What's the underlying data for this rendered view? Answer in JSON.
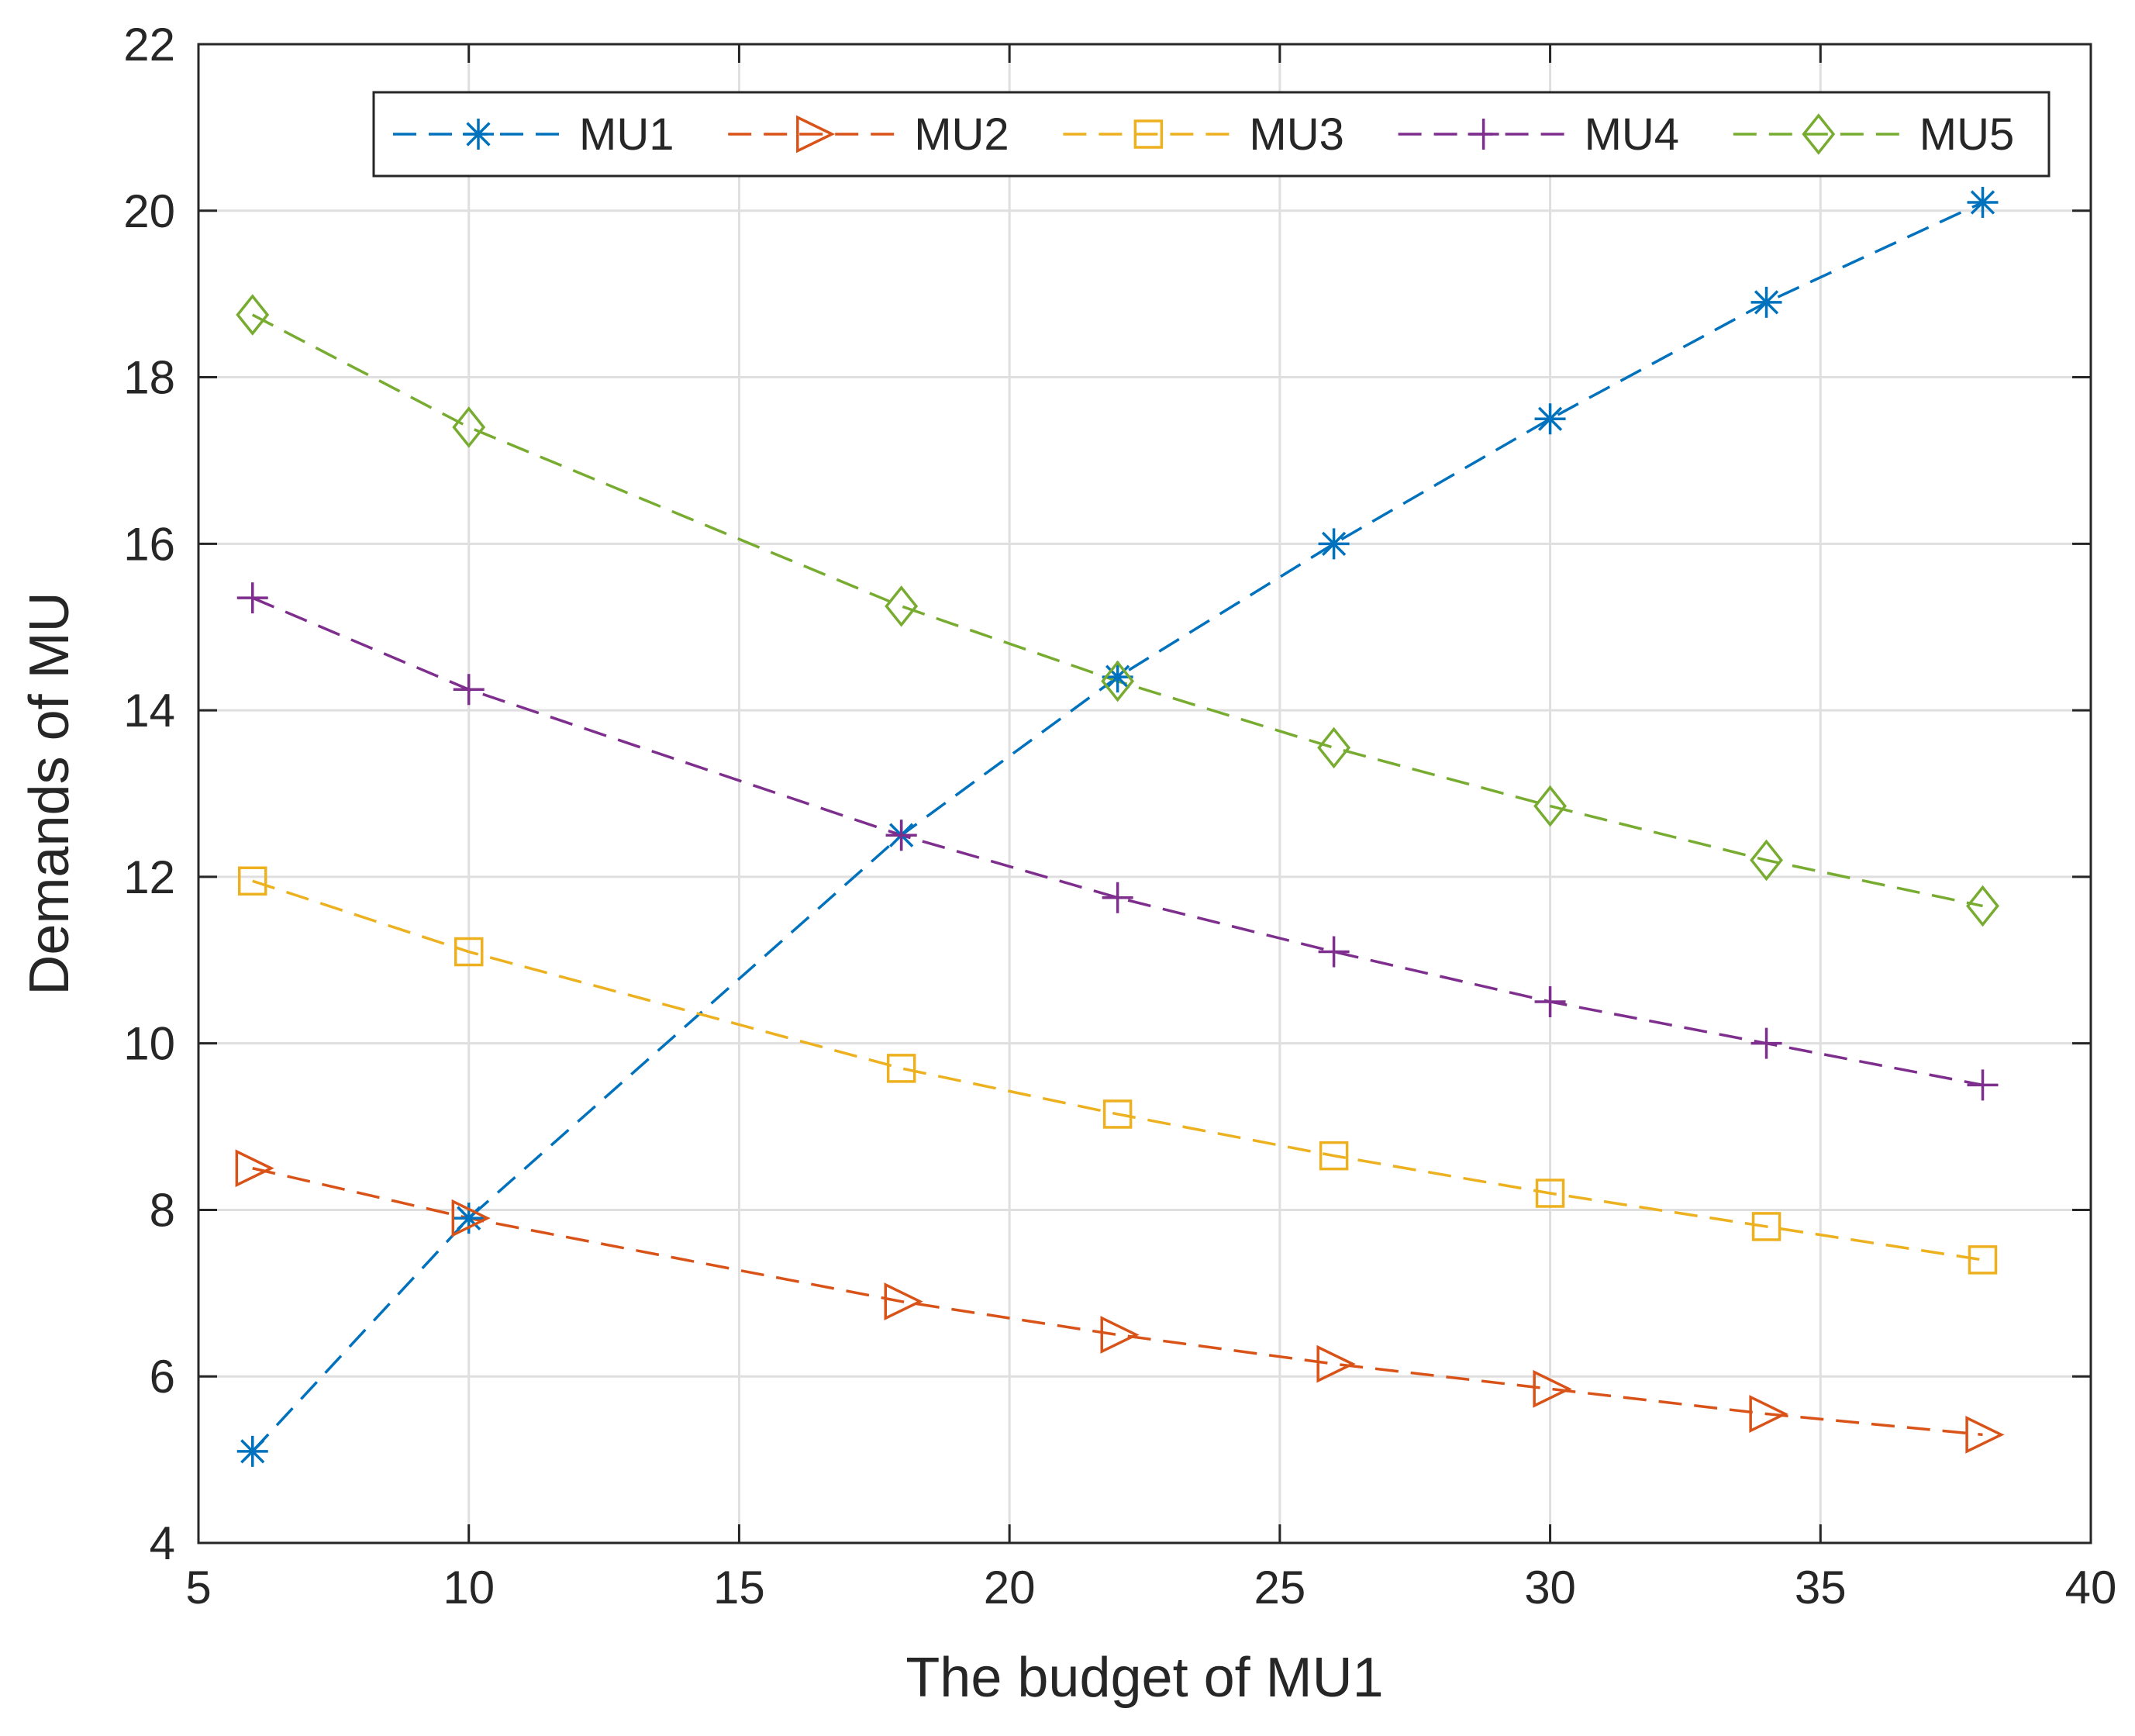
{
  "chart_data": {
    "type": "line",
    "title": "",
    "xlabel": "The budget of MU1",
    "ylabel": "Demands of MU",
    "xlim": [
      5,
      40
    ],
    "ylim": [
      4,
      22
    ],
    "xticks": [
      5,
      10,
      15,
      20,
      25,
      30,
      35,
      40
    ],
    "yticks": [
      4,
      6,
      8,
      10,
      12,
      14,
      16,
      18,
      20,
      22
    ],
    "grid": true,
    "legend_position": "top",
    "legend_orientation": "horizontal",
    "x": [
      6,
      10,
      18,
      22,
      26,
      30,
      34,
      38
    ],
    "series": [
      {
        "name": "MU1",
        "color": "#0072BD",
        "marker": "asterisk",
        "values": [
          5.1,
          7.9,
          12.5,
          14.4,
          16.0,
          17.5,
          18.9,
          20.1
        ]
      },
      {
        "name": "MU2",
        "color": "#D95319",
        "marker": "triangle-right",
        "values": [
          8.5,
          7.9,
          6.9,
          6.5,
          6.15,
          5.85,
          5.55,
          5.3
        ]
      },
      {
        "name": "MU3",
        "color": "#EDB120",
        "marker": "square",
        "values": [
          11.95,
          11.1,
          9.7,
          9.15,
          8.65,
          8.2,
          7.8,
          7.4
        ]
      },
      {
        "name": "MU4",
        "color": "#7E2F8E",
        "marker": "plus",
        "values": [
          15.35,
          14.25,
          12.5,
          11.75,
          11.1,
          10.5,
          10.0,
          9.5
        ]
      },
      {
        "name": "MU5",
        "color": "#77AC30",
        "marker": "diamond",
        "values": [
          18.75,
          17.4,
          15.25,
          14.35,
          13.55,
          12.85,
          12.2,
          11.65
        ]
      }
    ]
  }
}
